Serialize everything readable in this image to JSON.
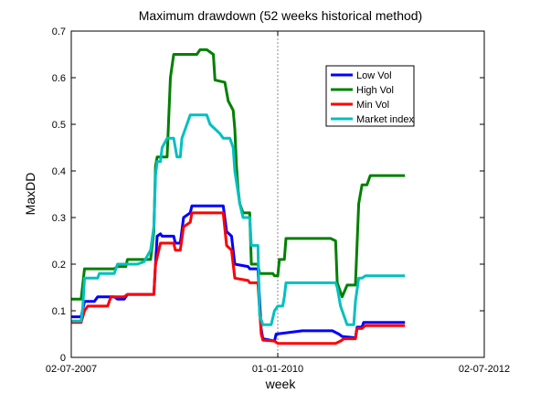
{
  "chart_data": {
    "type": "line",
    "title": "Maximum drawdown (52 weeks historical method)",
    "xlabel": "week",
    "ylabel": "MaxDD",
    "xlim": [
      0,
      250
    ],
    "ylim": [
      0,
      0.7
    ],
    "yticks": [
      0,
      0.1,
      0.2,
      0.3,
      0.4,
      0.5,
      0.6,
      0.7
    ],
    "xticks": [
      {
        "x": 0,
        "label": "02-07-2007"
      },
      {
        "x": 125,
        "label": "01-01-2010"
      },
      {
        "x": 250,
        "label": "02-07-2012"
      }
    ],
    "vertical_grid_at": 125,
    "legend": "top-right",
    "series": [
      {
        "name": "Low Vol",
        "color": "#0000ff",
        "points": [
          [
            0,
            0.087
          ],
          [
            6,
            0.087
          ],
          [
            8,
            0.12
          ],
          [
            14,
            0.12
          ],
          [
            16,
            0.13
          ],
          [
            26,
            0.13
          ],
          [
            28,
            0.125
          ],
          [
            32,
            0.125
          ],
          [
            34,
            0.135
          ],
          [
            50,
            0.135
          ],
          [
            51,
            0.2
          ],
          [
            52,
            0.26
          ],
          [
            54,
            0.265
          ],
          [
            55,
            0.26
          ],
          [
            62,
            0.26
          ],
          [
            63,
            0.245
          ],
          [
            66,
            0.245
          ],
          [
            68,
            0.3
          ],
          [
            72,
            0.31
          ],
          [
            73,
            0.325
          ],
          [
            92,
            0.325
          ],
          [
            94,
            0.27
          ],
          [
            97,
            0.26
          ],
          [
            99,
            0.2
          ],
          [
            107,
            0.195
          ],
          [
            108,
            0.19
          ],
          [
            113,
            0.19
          ],
          [
            115,
            0.06
          ],
          [
            116,
            0.04
          ],
          [
            123,
            0.035
          ],
          [
            124,
            0.05
          ],
          [
            140,
            0.057
          ],
          [
            158,
            0.057
          ],
          [
            162,
            0.05
          ],
          [
            164,
            0.045
          ],
          [
            172,
            0.042
          ],
          [
            173,
            0.065
          ],
          [
            176,
            0.065
          ],
          [
            177,
            0.075
          ],
          [
            202,
            0.075
          ]
        ]
      },
      {
        "name": "High Vol",
        "color": "#008000",
        "points": [
          [
            0,
            0.125
          ],
          [
            6,
            0.125
          ],
          [
            8,
            0.19
          ],
          [
            26,
            0.19
          ],
          [
            28,
            0.195
          ],
          [
            33,
            0.195
          ],
          [
            34,
            0.21
          ],
          [
            48,
            0.21
          ],
          [
            50,
            0.27
          ],
          [
            51,
            0.41
          ],
          [
            52,
            0.43
          ],
          [
            58,
            0.43
          ],
          [
            60,
            0.6
          ],
          [
            62,
            0.65
          ],
          [
            76,
            0.65
          ],
          [
            78,
            0.66
          ],
          [
            82,
            0.66
          ],
          [
            86,
            0.65
          ],
          [
            87,
            0.595
          ],
          [
            93,
            0.59
          ],
          [
            95,
            0.55
          ],
          [
            98,
            0.53
          ],
          [
            99,
            0.49
          ],
          [
            100,
            0.41
          ],
          [
            101,
            0.36
          ],
          [
            102,
            0.33
          ],
          [
            104,
            0.31
          ],
          [
            108,
            0.31
          ],
          [
            109,
            0.2
          ],
          [
            113,
            0.2
          ],
          [
            114,
            0.18
          ],
          [
            122,
            0.18
          ],
          [
            123,
            0.175
          ],
          [
            125,
            0.175
          ],
          [
            126,
            0.21
          ],
          [
            129,
            0.21
          ],
          [
            130,
            0.255
          ],
          [
            157,
            0.255
          ],
          [
            160,
            0.25
          ],
          [
            161,
            0.16
          ],
          [
            164,
            0.13
          ],
          [
            167,
            0.155
          ],
          [
            172,
            0.155
          ],
          [
            174,
            0.33
          ],
          [
            176,
            0.37
          ],
          [
            179,
            0.37
          ],
          [
            181,
            0.39
          ],
          [
            202,
            0.39
          ]
        ]
      },
      {
        "name": "Min Vol",
        "color": "#ff0000",
        "points": [
          [
            0,
            0.075
          ],
          [
            6,
            0.075
          ],
          [
            8,
            0.1
          ],
          [
            10,
            0.11
          ],
          [
            22,
            0.11
          ],
          [
            24,
            0.13
          ],
          [
            32,
            0.13
          ],
          [
            34,
            0.135
          ],
          [
            50,
            0.135
          ],
          [
            51,
            0.2
          ],
          [
            54,
            0.245
          ],
          [
            62,
            0.245
          ],
          [
            63,
            0.23
          ],
          [
            66,
            0.23
          ],
          [
            68,
            0.28
          ],
          [
            72,
            0.29
          ],
          [
            73,
            0.31
          ],
          [
            92,
            0.31
          ],
          [
            94,
            0.24
          ],
          [
            97,
            0.23
          ],
          [
            99,
            0.17
          ],
          [
            107,
            0.165
          ],
          [
            108,
            0.16
          ],
          [
            113,
            0.16
          ],
          [
            115,
            0.05
          ],
          [
            116,
            0.037
          ],
          [
            123,
            0.035
          ],
          [
            125,
            0.03
          ],
          [
            160,
            0.03
          ],
          [
            163,
            0.035
          ],
          [
            165,
            0.04
          ],
          [
            172,
            0.04
          ],
          [
            173,
            0.062
          ],
          [
            176,
            0.062
          ],
          [
            178,
            0.068
          ],
          [
            202,
            0.068
          ]
        ]
      },
      {
        "name": "Market index",
        "color": "#00c0c0",
        "points": [
          [
            0,
            0.078
          ],
          [
            6,
            0.078
          ],
          [
            7,
            0.11
          ],
          [
            8,
            0.17
          ],
          [
            16,
            0.17
          ],
          [
            17,
            0.18
          ],
          [
            26,
            0.18
          ],
          [
            28,
            0.2
          ],
          [
            40,
            0.2
          ],
          [
            44,
            0.205
          ],
          [
            48,
            0.23
          ],
          [
            50,
            0.28
          ],
          [
            51,
            0.39
          ],
          [
            52,
            0.42
          ],
          [
            54,
            0.42
          ],
          [
            55,
            0.45
          ],
          [
            58,
            0.47
          ],
          [
            62,
            0.47
          ],
          [
            64,
            0.43
          ],
          [
            66,
            0.43
          ],
          [
            67,
            0.47
          ],
          [
            70,
            0.5
          ],
          [
            72,
            0.52
          ],
          [
            82,
            0.52
          ],
          [
            84,
            0.5
          ],
          [
            90,
            0.48
          ],
          [
            92,
            0.47
          ],
          [
            96,
            0.47
          ],
          [
            98,
            0.45
          ],
          [
            99,
            0.4
          ],
          [
            102,
            0.33
          ],
          [
            104,
            0.3
          ],
          [
            108,
            0.3
          ],
          [
            109,
            0.24
          ],
          [
            113,
            0.24
          ],
          [
            114,
            0.09
          ],
          [
            116,
            0.07
          ],
          [
            121,
            0.07
          ],
          [
            123,
            0.1
          ],
          [
            125,
            0.11
          ],
          [
            128,
            0.11
          ],
          [
            129,
            0.13
          ],
          [
            130,
            0.16
          ],
          [
            160,
            0.16
          ],
          [
            161,
            0.15
          ],
          [
            163,
            0.11
          ],
          [
            165,
            0.09
          ],
          [
            167,
            0.07
          ],
          [
            171,
            0.07
          ],
          [
            172,
            0.12
          ],
          [
            174,
            0.17
          ],
          [
            176,
            0.17
          ],
          [
            178,
            0.175
          ],
          [
            202,
            0.175
          ]
        ]
      }
    ]
  }
}
